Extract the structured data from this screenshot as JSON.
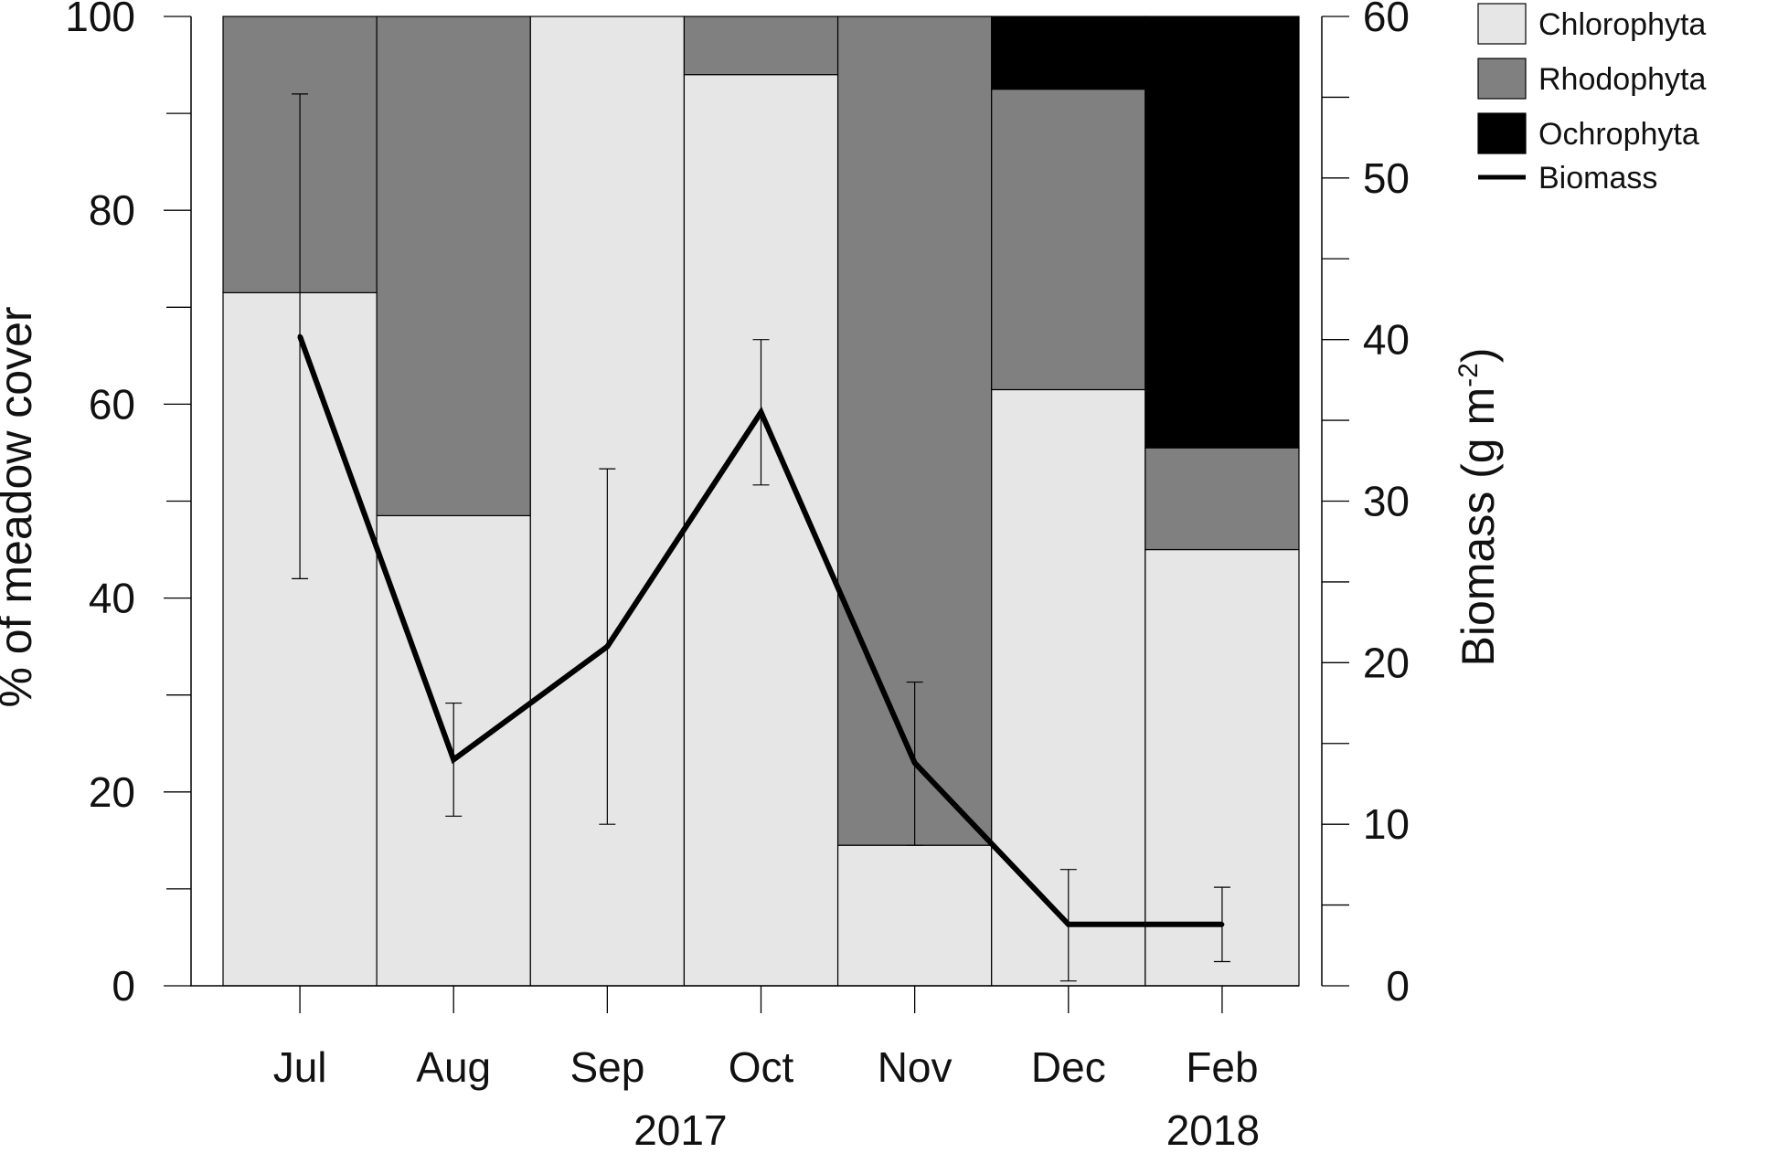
{
  "chart_data": {
    "type": "bar",
    "stacked": true,
    "categories": [
      "Jul",
      "Aug",
      "Sep",
      "Oct",
      "Nov",
      "Dec",
      "Feb"
    ],
    "year_labels": [
      {
        "text": "2017",
        "under": "Sep"
      },
      {
        "text": "2018",
        "under": "Feb"
      }
    ],
    "ylabel_left": "% of meadow cover",
    "ylabel_right": "Biomass (g m",
    "ylabel_right_sup": "-2",
    "ylabel_right_close": ")",
    "ylim_left": [
      0,
      100
    ],
    "ylim_right": [
      0,
      60
    ],
    "yticks_left": [
      0,
      20,
      40,
      60,
      80,
      100
    ],
    "yticks_right": [
      0,
      10,
      20,
      30,
      40,
      50,
      60
    ],
    "grid": false,
    "legend_position": "top-right",
    "series": [
      {
        "name": "Chlorophyta",
        "color": "#e6e6e6",
        "values": [
          71.5,
          48.5,
          100,
          94,
          14.5,
          61.5,
          45
        ]
      },
      {
        "name": "Rhodophyta",
        "color": "#808080",
        "values": [
          28.5,
          51.5,
          0,
          6,
          85.5,
          31,
          10.5
        ]
      },
      {
        "name": "Ochrophyta",
        "color": "#000000",
        "values": [
          0,
          0,
          0,
          0,
          0,
          7.5,
          44.5
        ]
      }
    ],
    "line_series": {
      "name": "Biomass",
      "color": "#000000",
      "axis": "right",
      "values": [
        40.2,
        14,
        21,
        35.5,
        13.8,
        3.8,
        3.8
      ],
      "error_low": [
        25.2,
        10.5,
        10,
        31,
        8.7,
        0.3,
        1.5
      ],
      "error_high": [
        55.2,
        17.5,
        32,
        40,
        18.8,
        7.2,
        6.1
      ]
    }
  }
}
